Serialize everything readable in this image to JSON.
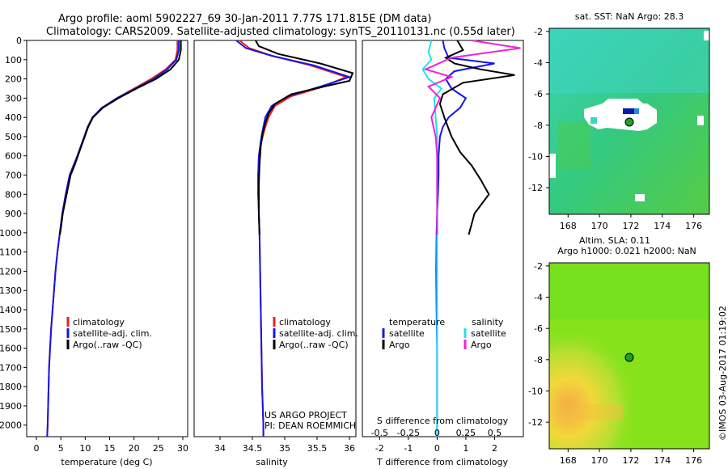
{
  "title": {
    "line1": "Argo profile: aoml 5902227_69 30-Jan-2011 7.77S 171.815E (DM data)",
    "line2": "Climatology: CARS2009. Satellite-adjusted climatology: synTS_20110131.nc (0.55d later)"
  },
  "colors": {
    "climatology": "#e8201e",
    "satellite": "#1616e6",
    "argo": "#000000",
    "s_satellite": "#22e0ee",
    "s_argo": "#ee22dd",
    "marker": "#1fa02a"
  },
  "depth_axis": {
    "ylim": [
      2060,
      0
    ],
    "ticks": [
      0,
      100,
      200,
      300,
      400,
      500,
      600,
      700,
      800,
      900,
      1000,
      1100,
      1200,
      1300,
      1400,
      1500,
      1600,
      1700,
      1800,
      1900,
      2000
    ]
  },
  "chart_data": [
    {
      "type": "line",
      "xlabel": "temperature (deg C)",
      "xlim": [
        -2,
        31
      ],
      "xticks": [
        0,
        5,
        10,
        15,
        20,
        25,
        30
      ],
      "series": [
        {
          "name": "climatology",
          "color_key": "climatology",
          "x": [
            28.9,
            28.9,
            28.5,
            26.5,
            23.5,
            20,
            16.5,
            13.5,
            11.5,
            10.5,
            9.8,
            9.1,
            8.4,
            7.6,
            6.8,
            6,
            5.3,
            4.8,
            4.3,
            3.9,
            3.6,
            3.3,
            3,
            2.8,
            2.6,
            2.5,
            2.4,
            2.3,
            2.2
          ],
          "depth": [
            0,
            50,
            100,
            150,
            200,
            250,
            300,
            350,
            400,
            450,
            500,
            550,
            600,
            650,
            700,
            800,
            900,
            1000,
            1100,
            1200,
            1300,
            1400,
            1500,
            1600,
            1700,
            1800,
            1900,
            2000,
            2060
          ]
        },
        {
          "name": "satellite-adj. clim.",
          "color_key": "satellite",
          "x": [
            29.2,
            29.2,
            28.7,
            26.8,
            24,
            20.3,
            16.5,
            13.4,
            11.5,
            10.5,
            9.8,
            9.1,
            8.4,
            7.6,
            6.8,
            6,
            5.3,
            4.8,
            4.3,
            3.9,
            3.6,
            3.3,
            3,
            2.8,
            2.6,
            2.5,
            2.4,
            2.3,
            2.2
          ],
          "depth": [
            0,
            50,
            100,
            150,
            200,
            250,
            300,
            350,
            400,
            450,
            500,
            550,
            600,
            650,
            700,
            800,
            900,
            1000,
            1100,
            1200,
            1300,
            1400,
            1500,
            1600,
            1700,
            1800,
            1900,
            2000,
            2060
          ]
        },
        {
          "name": "Argo(..raw -QC)",
          "color_key": "argo",
          "x": [
            29.6,
            29.6,
            29.2,
            27.5,
            24.5,
            20.5,
            16.8,
            13.6,
            11.6,
            10.6,
            9.9,
            9.2,
            8.5,
            7.8,
            7,
            6.2,
            5.4,
            5,
            4.8
          ],
          "depth": [
            0,
            50,
            100,
            150,
            200,
            250,
            300,
            350,
            400,
            450,
            500,
            550,
            600,
            650,
            700,
            800,
            900,
            980,
            1010
          ]
        }
      ],
      "legend": {
        "position": "lower-middle",
        "entries": [
          "climatology",
          "satellite-adj. clim.",
          "Argo(..raw -QC)"
        ]
      }
    },
    {
      "type": "line",
      "xlabel": "salinity",
      "xlim": [
        33.6,
        36.1
      ],
      "xticks": [
        34,
        34.5,
        35,
        35.5,
        36
      ],
      "series": [
        {
          "name": "climatology",
          "color_key": "climatology",
          "x": [
            34.3,
            34.45,
            34.8,
            35.4,
            35.95,
            35.6,
            35.1,
            34.85,
            34.75,
            34.7,
            34.66,
            34.62,
            34.6,
            34.59,
            34.59,
            34.6,
            34.61,
            34.62,
            34.63,
            34.64,
            34.65,
            34.66,
            34.67,
            34.67
          ],
          "depth": [
            0,
            40,
            80,
            130,
            190,
            240,
            290,
            340,
            400,
            450,
            500,
            550,
            600,
            700,
            800,
            900,
            1000,
            1200,
            1400,
            1600,
            1800,
            1900,
            2000,
            2060
          ]
        },
        {
          "name": "satellite-adj. clim.",
          "color_key": "satellite",
          "x": [
            34.25,
            34.4,
            34.8,
            35.45,
            36.0,
            35.55,
            35.05,
            34.8,
            34.7,
            34.67,
            34.64,
            34.62,
            34.6,
            34.59,
            34.59,
            34.6,
            34.61,
            34.62,
            34.63,
            34.64,
            34.65,
            34.66,
            34.67,
            34.67
          ],
          "depth": [
            0,
            40,
            80,
            130,
            190,
            240,
            290,
            340,
            400,
            450,
            500,
            550,
            600,
            700,
            800,
            900,
            1000,
            1200,
            1400,
            1600,
            1800,
            1900,
            2000,
            2060
          ]
        },
        {
          "name": "Argo(..raw -QC)",
          "color_key": "argo",
          "x": [
            34.55,
            34.6,
            34.9,
            35.55,
            36.05,
            36.0,
            35.6,
            35.1,
            34.85,
            34.75,
            34.7,
            34.66,
            34.63,
            34.61,
            34.6,
            34.6,
            34.61
          ],
          "depth": [
            0,
            30,
            70,
            120,
            170,
            210,
            240,
            280,
            330,
            380,
            430,
            480,
            550,
            650,
            750,
            900,
            1010
          ]
        }
      ],
      "legend": {
        "position": "lower-middle",
        "entries": [
          "climatology",
          "satellite-adj. clim.",
          "Argo(..raw -QC)"
        ]
      }
    },
    {
      "type": "line",
      "xlabel": "T difference from climatology",
      "top_label": "S difference from climatology",
      "xlim": [
        -2.6,
        3.0
      ],
      "xticks": [
        -2,
        -1,
        0,
        1,
        2
      ],
      "top_xticks_values": [
        -0.5,
        -0.25,
        0,
        0.25,
        0.5
      ],
      "top_xtick_labels": [
        "-0.5",
        "-0.25",
        "0",
        "0.25",
        "0.5"
      ],
      "series": [
        {
          "name": "temperature satellite",
          "color_key": "satellite",
          "x": [
            0.2,
            0.25,
            0.4,
            2.0,
            0.6,
            0.3,
            0.5,
            1.0,
            0.8,
            0.4,
            0.2,
            0.1,
            0.05,
            0.05,
            0.03,
            0.0,
            -0.02,
            -0.03,
            -0.02,
            0.0,
            0.0,
            0.0,
            0.0
          ],
          "depth": [
            0,
            40,
            90,
            120,
            160,
            200,
            250,
            300,
            350,
            400,
            450,
            500,
            600,
            700,
            800,
            900,
            1000,
            1200,
            1400,
            1600,
            1800,
            2000,
            2060
          ]
        },
        {
          "name": "temperature Argo",
          "color_key": "argo",
          "x": [
            0.7,
            0.9,
            0.3,
            0.6,
            1.5,
            2.7,
            0.9,
            0.2,
            0.1,
            0.25,
            0.5,
            0.8,
            1.2,
            1.5,
            1.8,
            1.3,
            1.1
          ],
          "depth": [
            0,
            50,
            90,
            120,
            150,
            180,
            220,
            280,
            330,
            400,
            500,
            580,
            650,
            720,
            800,
            900,
            1010
          ]
        },
        {
          "name": "salinity satellite",
          "color_key": "s_satellite",
          "x": [
            -0.2,
            -0.3,
            -0.2,
            -0.5,
            -0.3,
            0.15,
            -0.1,
            -0.05,
            0.0,
            0.0,
            0.0,
            0.0,
            0.0,
            0.0,
            0.0,
            0.0,
            0.0,
            0.0,
            0.0,
            0.0
          ],
          "depth": [
            0,
            60,
            100,
            150,
            200,
            250,
            300,
            400,
            500,
            600,
            700,
            800,
            900,
            1000,
            1200,
            1400,
            1600,
            1800,
            2000,
            2060
          ]
        },
        {
          "name": "salinity Argo",
          "color_key": "s_argo",
          "x": [
            1.2,
            2.9,
            0.5,
            -0.4,
            0.5,
            -0.3,
            0.1,
            -0.2,
            -0.05,
            0.0,
            0.0,
            0.0,
            0.0,
            0.0,
            0.0
          ],
          "depth": [
            0,
            40,
            90,
            150,
            190,
            240,
            300,
            400,
            500,
            600,
            700,
            800,
            900,
            1000,
            1010
          ]
        }
      ],
      "legend": {
        "position": "lower-middle",
        "temperature_title": "temperature",
        "salinity_title": "salinity",
        "temperature_entries": [
          "satellite",
          "Argo"
        ],
        "salinity_entries": [
          "satellite",
          "Argo"
        ]
      }
    },
    {
      "type": "heatmap",
      "title": "sat. SST: NaN Argo: 28.3",
      "xlim": [
        166.8,
        177.0
      ],
      "ylim": [
        -13.7,
        -1.8
      ],
      "xticks": [
        168,
        170,
        172,
        174,
        176
      ],
      "yticks": [
        -2,
        -4,
        -6,
        -8,
        -10,
        -12
      ],
      "marker": {
        "lon": 171.815,
        "lat": -7.77
      }
    },
    {
      "type": "heatmap",
      "title_line1": "Altim. SLA: 0.11",
      "title_line2": "Argo h1000: 0.021 h2000: NaN",
      "xlim": [
        166.8,
        177.0
      ],
      "ylim": [
        -13.7,
        -1.8
      ],
      "xticks": [
        168,
        170,
        172,
        174,
        176
      ],
      "yticks": [
        -2,
        -4,
        -6,
        -8,
        -10,
        -12
      ],
      "marker": {
        "lon": 171.815,
        "lat": -7.77
      }
    }
  ],
  "annotation": {
    "project_line1": "US ARGO PROJECT",
    "project_line2": "PI: DEAN ROEMMICH"
  },
  "credit": "©IMOS 03-Aug-2017 01:19:02"
}
